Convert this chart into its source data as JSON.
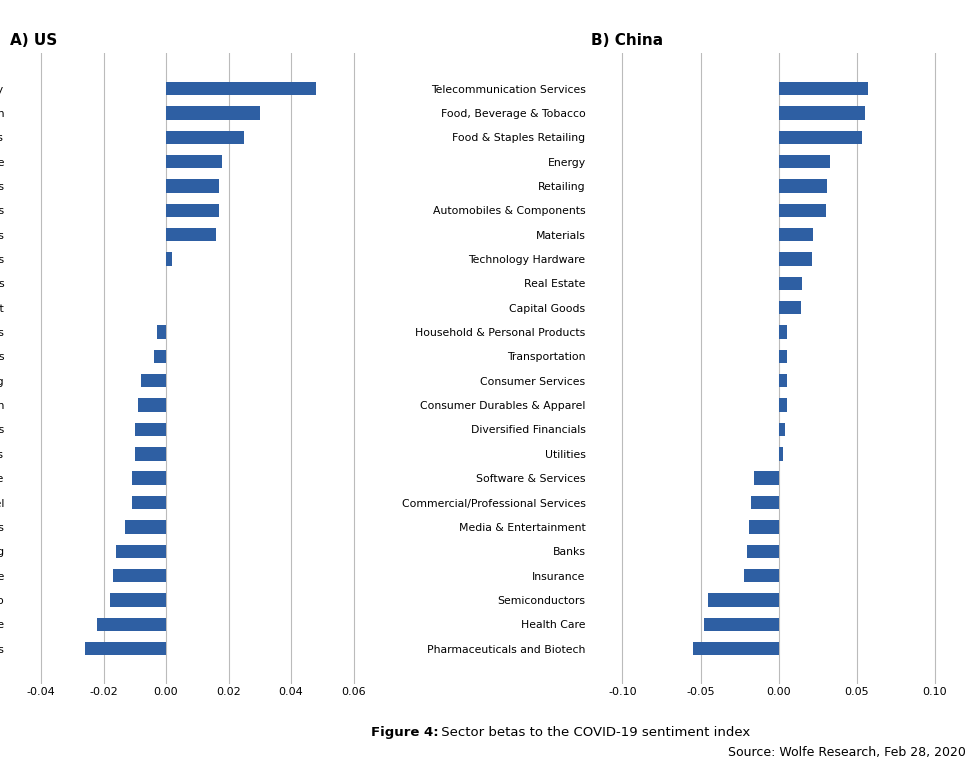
{
  "us_categories": [
    "Energy",
    "Transportation",
    "Materials",
    "Health Care",
    "Semiconductors",
    "Consumer Services",
    "Diversified Financials",
    "Capital Goods",
    "Automobiles & Components",
    "Media & Entertainment",
    "Commercial/Professional Services",
    "Software & Services",
    "Retailing",
    "Pharmaceuticals and Biotech",
    "Household & Personal Products",
    "Banks",
    "Insurance",
    "Consumer Durables & Apparel",
    "Utilities",
    "Food & Staples Retailing",
    "Real Estate",
    "Food, Beverage & Tobacco",
    "Technology Hardware",
    "Telecommunication Services"
  ],
  "us_values": [
    0.048,
    0.03,
    0.025,
    0.018,
    0.017,
    0.017,
    0.016,
    0.002,
    0.0,
    0.0,
    -0.003,
    -0.004,
    -0.008,
    -0.009,
    -0.01,
    -0.01,
    -0.011,
    -0.011,
    -0.013,
    -0.016,
    -0.017,
    -0.018,
    -0.022,
    -0.026
  ],
  "china_categories": [
    "Telecommunication Services",
    "Food, Beverage & Tobacco",
    "Food & Staples Retailing",
    "Energy",
    "Retailing",
    "Automobiles & Components",
    "Materials",
    "Technology Hardware",
    "Real Estate",
    "Capital Goods",
    "Household & Personal Products",
    "Transportation",
    "Consumer Services",
    "Consumer Durables & Apparel",
    "Diversified Financials",
    "Utilities",
    "Software & Services",
    "Commercial/Professional Services",
    "Media & Entertainment",
    "Banks",
    "Insurance",
    "Semiconductors",
    "Health Care",
    "Pharmaceuticals and Biotech"
  ],
  "china_values": [
    0.057,
    0.055,
    0.053,
    0.033,
    0.031,
    0.03,
    0.022,
    0.021,
    0.015,
    0.014,
    0.005,
    0.005,
    0.005,
    0.005,
    0.004,
    0.003,
    -0.016,
    -0.018,
    -0.019,
    -0.02,
    -0.022,
    -0.045,
    -0.048,
    -0.055
  ],
  "bar_color": "#2E5FA3",
  "us_xlim": [
    -0.05,
    0.07
  ],
  "china_xlim": [
    -0.12,
    0.12
  ],
  "us_xticks": [
    -0.04,
    -0.02,
    0.0,
    0.02,
    0.04,
    0.06
  ],
  "china_xticks": [
    -0.1,
    -0.05,
    0.0,
    0.05,
    0.1
  ],
  "title_a": "A) US",
  "title_b": "B) China",
  "figure_caption": "Figure 4:",
  "figure_caption_rest": " Sector betas to the COVID-19 sentiment index",
  "source_text": "Source: Wolfe Research, Feb 28, 2020",
  "background_color": "#ffffff",
  "grid_color": "#bbbbbb"
}
